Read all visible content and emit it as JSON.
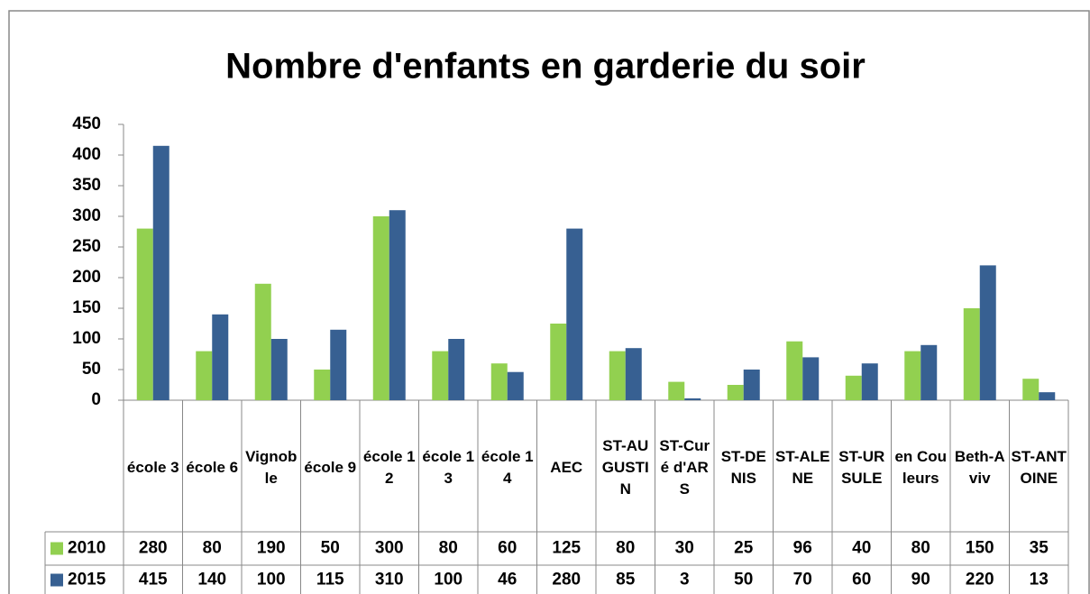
{
  "chart_data": {
    "type": "bar",
    "title": "Nombre d'enfants en garderie du soir",
    "categories": [
      "école 3",
      "école 6",
      "Vignoble",
      "école 9",
      "école 12",
      "école 13",
      "école 14",
      "AEC",
      "ST-AUGUSTIN",
      "ST-Curé d'ARS",
      "ST-DENIS",
      "ST-ALENE",
      "ST-URSULE",
      "en Couleurs",
      "Beth-Aviv",
      "ST-ANTOINE"
    ],
    "series": [
      {
        "name": "2010",
        "color": "#92d050",
        "values": [
          280,
          80,
          190,
          50,
          300,
          80,
          60,
          125,
          80,
          30,
          25,
          96,
          40,
          80,
          150,
          35
        ]
      },
      {
        "name": "2015",
        "color": "#376092",
        "values": [
          415,
          140,
          100,
          115,
          310,
          100,
          46,
          280,
          85,
          3,
          50,
          70,
          60,
          90,
          220,
          13
        ]
      }
    ],
    "ylim": [
      0,
      450
    ],
    "yticks": [
      0,
      50,
      100,
      150,
      200,
      250,
      300,
      350,
      400,
      450
    ]
  }
}
